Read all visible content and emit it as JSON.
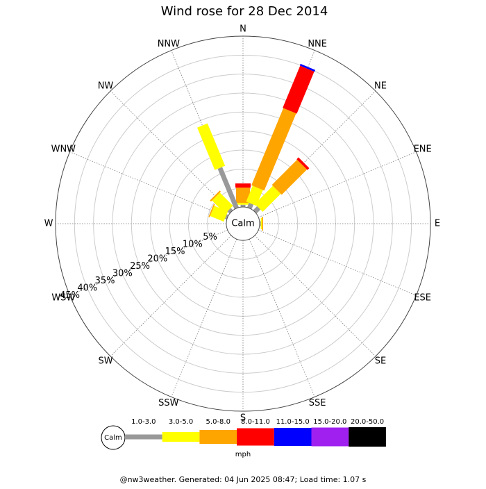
{
  "chart_data": {
    "type": "windrose",
    "title": "Wind rose for 28 Dec 2014",
    "categories": [
      "N",
      "NNE",
      "NE",
      "ENE",
      "E",
      "ESE",
      "SE",
      "SSE",
      "S",
      "SSW",
      "SW",
      "WSW",
      "W",
      "WNW",
      "NW",
      "NNW"
    ],
    "series": [
      {
        "name": "1.0-3.0",
        "color": "#999999",
        "values": [
          0.6,
          1.3,
          1.5,
          0,
          0.3,
          0,
          0,
          0,
          0,
          0,
          0,
          0,
          0,
          0.5,
          0.8,
          11.5
        ]
      },
      {
        "name": "3.0-5.0",
        "color": "#ffff00",
        "values": [
          0.5,
          4.5,
          6.7,
          0,
          0.3,
          0,
          0,
          0,
          0,
          0,
          0,
          0,
          0,
          3.9,
          4.9,
          12.1
        ]
      },
      {
        "name": "5.0-8.0",
        "color": "#ffa500",
        "values": [
          4,
          22,
          9.4,
          0,
          0.3,
          0,
          0,
          0,
          0,
          0,
          0,
          0,
          0,
          0.3,
          0.4,
          0
        ]
      },
      {
        "name": "8.0-11.0",
        "color": "#ff0000",
        "values": [
          1.1,
          12,
          0.7,
          0,
          0,
          0,
          0,
          0,
          0,
          0,
          0,
          0,
          0,
          0,
          0,
          0
        ]
      },
      {
        "name": "11.0-15.0",
        "color": "#0000ff",
        "values": [
          0,
          0.5,
          0,
          0,
          0,
          0,
          0,
          0,
          0,
          0,
          0,
          0,
          0,
          0,
          0,
          0
        ]
      },
      {
        "name": "15.0-20.0",
        "color": "#a020f0",
        "values": [
          0,
          0,
          0,
          0,
          0,
          0,
          0,
          0,
          0,
          0,
          0,
          0,
          0,
          0,
          0,
          0
        ]
      },
      {
        "name": "20.0-50.0",
        "color": "#000000",
        "values": [
          0,
          0,
          0,
          0,
          0,
          0,
          0,
          0,
          0,
          0,
          0,
          0,
          0,
          0,
          0,
          0
        ]
      }
    ],
    "rlim": [
      0,
      45
    ],
    "rticks": [
      {
        "value": 5,
        "label": "5%"
      },
      {
        "value": 10,
        "label": "10%"
      },
      {
        "value": 15,
        "label": "15%"
      },
      {
        "value": 20,
        "label": "20%"
      },
      {
        "value": 25,
        "label": "25%"
      },
      {
        "value": 30,
        "label": "30%"
      },
      {
        "value": 35,
        "label": "35%"
      },
      {
        "value": 40,
        "label": "40%"
      },
      {
        "value": 45,
        "label": "45%"
      }
    ],
    "calm_label": "Calm",
    "legend_unit": "mph",
    "footer": "@nw3weather. Generated: 04 Jun 2025 08:47; Load time: 1.07 s"
  }
}
